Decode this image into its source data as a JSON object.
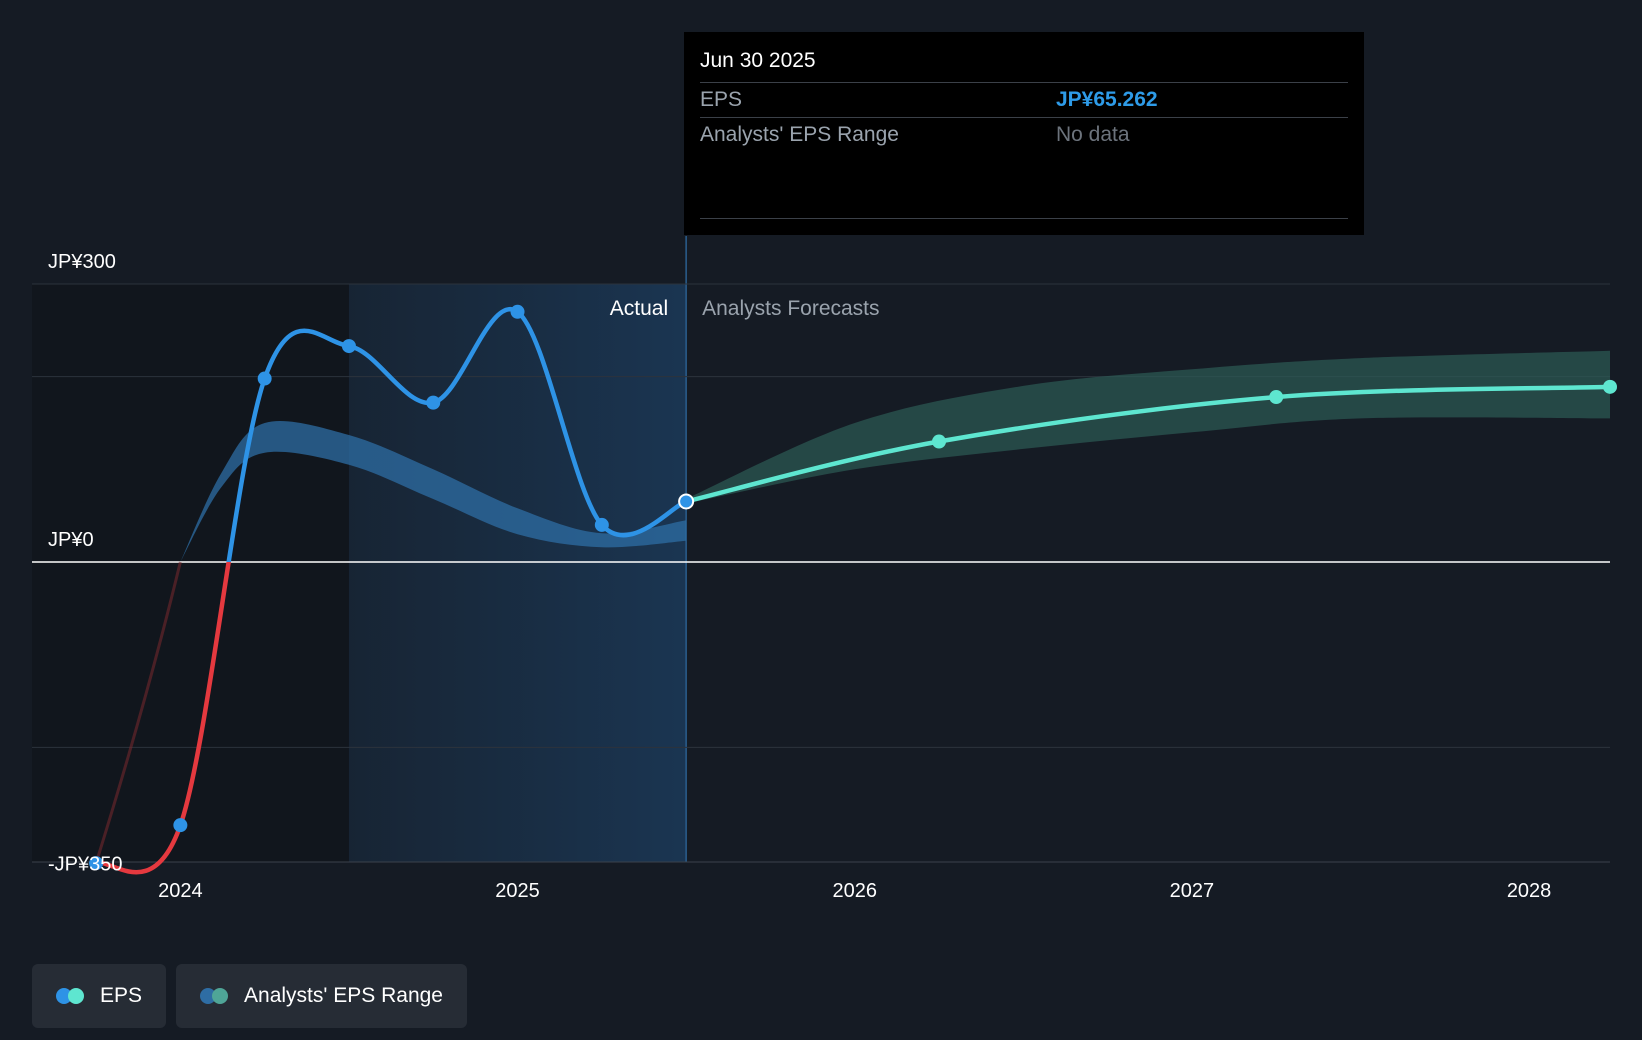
{
  "chart_data": {
    "type": "line",
    "currency_prefix": "JP¥",
    "y_axis": {
      "ticks": [
        300,
        0,
        -350
      ],
      "tick_labels": [
        "JP¥300",
        "JP¥0",
        "-JP¥350"
      ],
      "gridlines": [
        300,
        200,
        0,
        -200
      ],
      "ylim": [
        -350,
        300
      ]
    },
    "x_axis": {
      "tick_labels": [
        "2024",
        "2025",
        "2026",
        "2027",
        "2028"
      ],
      "tick_values": [
        2024.0,
        2025.0,
        2026.0,
        2027.0,
        2028.0
      ],
      "xlim": [
        2023.56,
        2028.24
      ]
    },
    "sections": {
      "actual_label": "Actual",
      "forecast_label": "Analysts Forecasts",
      "highlight_start": 2024.5,
      "divider": 2025.5
    },
    "series": [
      {
        "name": "EPS",
        "kind": "actual",
        "color_positive": "#2e93e6",
        "color_negative": "#e5393f",
        "points": [
          {
            "x": 2023.75,
            "y": -325
          },
          {
            "x": 2024.0,
            "y": -284
          },
          {
            "x": 2024.25,
            "y": 198
          },
          {
            "x": 2024.5,
            "y": 233
          },
          {
            "x": 2024.75,
            "y": 172
          },
          {
            "x": 2025.0,
            "y": 270
          },
          {
            "x": 2025.25,
            "y": 40
          },
          {
            "x": 2025.5,
            "y": 65.262
          }
        ]
      },
      {
        "name": "EPS",
        "kind": "forecast",
        "color": "#5ee6d0",
        "points": [
          {
            "x": 2025.5,
            "y": 65.262
          },
          {
            "x": 2026.25,
            "y": 130
          },
          {
            "x": 2027.25,
            "y": 178
          },
          {
            "x": 2028.24,
            "y": 189
          }
        ]
      }
    ],
    "past_estimate_band": {
      "color": "#2e6da4",
      "x": [
        2024.0,
        2024.12,
        2024.25,
        2024.5,
        2024.75,
        2025.0,
        2025.25,
        2025.5
      ],
      "upper": [
        0,
        95,
        150,
        137,
        100,
        58,
        31,
        45
      ],
      "lower": [
        0,
        80,
        118,
        105,
        68,
        30,
        16,
        23
      ]
    },
    "forecast_range_band": {
      "color": "#2c5b56",
      "x": [
        2025.5,
        2026.0,
        2026.5,
        2027.0,
        2027.5,
        2028.24
      ],
      "upper": [
        68,
        150,
        190,
        208,
        220,
        228
      ],
      "lower": [
        63,
        100,
        122,
        140,
        155,
        155
      ]
    }
  },
  "tooltip": {
    "date": "Jun 30 2025",
    "eps_label": "EPS",
    "eps_value": "JP¥65.262",
    "range_label": "Analysts' EPS Range",
    "range_value": "No data"
  },
  "legend": {
    "eps_label": "EPS",
    "range_label": "Analysts' EPS Range",
    "eps_colors": [
      "#2e93e6",
      "#5ee6d0"
    ],
    "range_colors": [
      "#2e6da4",
      "#4fa597"
    ]
  }
}
